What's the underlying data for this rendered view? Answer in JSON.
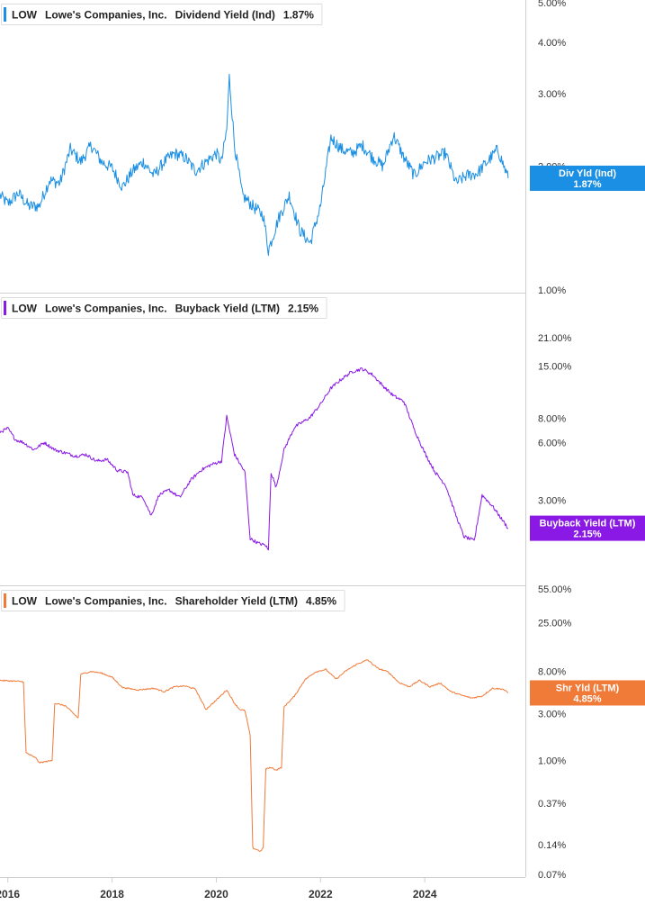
{
  "chart_data": [
    {
      "type": "line",
      "ticker": "LOW",
      "company": "Lowe's Companies, Inc.",
      "metric": "Dividend Yield (Ind)",
      "current_value": "1.87%",
      "tag_label": "Div Yld (Ind)",
      "tag_value": "1.87%",
      "color": "#1a8fe3",
      "y_scale": "log",
      "y_ticks": [
        5.0,
        4.0,
        3.0,
        2.0,
        1.0
      ],
      "y_tick_labels": [
        "5.00%",
        "4.00%",
        "3.00%",
        "2.00%",
        "1.00%"
      ],
      "ylim": [
        1.0,
        5.0
      ],
      "series": [
        {
          "x": [
            2015.85,
            2016.0,
            2016.2,
            2016.4,
            2016.6,
            2016.8,
            2017.0,
            2017.2,
            2017.4,
            2017.6,
            2017.8,
            2018.0,
            2018.2,
            2018.4,
            2018.6,
            2018.8,
            2019.0,
            2019.2,
            2019.4,
            2019.6,
            2019.8,
            2020.0,
            2020.1,
            2020.2,
            2020.25,
            2020.35,
            2020.5,
            2020.7,
            2020.9,
            2021.0,
            2021.2,
            2021.4,
            2021.6,
            2021.8,
            2022.0,
            2022.2,
            2022.4,
            2022.6,
            2022.8,
            2023.0,
            2023.2,
            2023.4,
            2023.6,
            2023.8,
            2024.0,
            2024.2,
            2024.4,
            2024.6,
            2024.8,
            2025.0,
            2025.2,
            2025.4,
            2025.6
          ],
          "values": [
            1.7,
            1.62,
            1.72,
            1.6,
            1.6,
            1.85,
            1.82,
            2.2,
            2.05,
            2.25,
            2.05,
            1.98,
            1.78,
            1.95,
            2.05,
            1.9,
            2.05,
            2.15,
            2.1,
            1.95,
            2.05,
            2.15,
            2.05,
            2.45,
            3.3,
            2.25,
            1.7,
            1.6,
            1.52,
            1.25,
            1.5,
            1.7,
            1.4,
            1.3,
            1.6,
            2.35,
            2.2,
            2.15,
            2.25,
            2.1,
            2.0,
            2.38,
            2.1,
            1.9,
            2.05,
            2.1,
            2.15,
            1.82,
            1.9,
            1.92,
            2.05,
            2.2,
            1.87
          ]
        }
      ]
    },
    {
      "type": "line",
      "ticker": "LOW",
      "company": "Lowe's Companies, Inc.",
      "metric": "Buyback Yield (LTM)",
      "current_value": "2.15%",
      "tag_label": "Buyback Yield (LTM)",
      "tag_value": "2.15%",
      "color": "#8a19e6",
      "y_scale": "log",
      "y_ticks": [
        21.0,
        15.0,
        8.0,
        6.0,
        3.0
      ],
      "y_tick_labels": [
        "21.00%",
        "15.00%",
        "8.00%",
        "6.00%",
        "3.00%"
      ],
      "ylim": [
        1.5,
        25.0
      ],
      "series": [
        {
          "x": [
            2015.85,
            2016.0,
            2016.15,
            2016.3,
            2016.5,
            2016.7,
            2016.9,
            2017.1,
            2017.3,
            2017.5,
            2017.7,
            2017.9,
            2018.1,
            2018.3,
            2018.4,
            2018.6,
            2018.75,
            2018.9,
            2019.1,
            2019.3,
            2019.5,
            2019.7,
            2019.9,
            2020.1,
            2020.2,
            2020.35,
            2020.55,
            2020.65,
            2020.8,
            2020.95,
            2021.0,
            2021.05,
            2021.15,
            2021.3,
            2021.5,
            2021.6,
            2021.8,
            2022.0,
            2022.2,
            2022.4,
            2022.6,
            2022.8,
            2023.0,
            2023.2,
            2023.4,
            2023.6,
            2023.8,
            2024.0,
            2024.2,
            2024.4,
            2024.6,
            2024.75,
            2024.95,
            2025.1,
            2025.3,
            2025.5,
            2025.6
          ],
          "values": [
            6.8,
            7.1,
            6.2,
            6.0,
            5.5,
            6.0,
            5.5,
            5.3,
            5.1,
            5.2,
            4.8,
            4.9,
            4.3,
            4.2,
            3.2,
            3.1,
            2.5,
            3.2,
            3.4,
            3.1,
            3.8,
            4.3,
            4.6,
            4.8,
            8.2,
            5.2,
            4.2,
            1.9,
            1.8,
            1.75,
            1.65,
            4.2,
            3.5,
            5.5,
            7.2,
            7.5,
            8.1,
            9.5,
            11.5,
            12.8,
            14.0,
            14.5,
            13.5,
            11.8,
            10.5,
            9.8,
            7.0,
            5.3,
            4.2,
            3.6,
            2.5,
            1.95,
            1.85,
            3.2,
            2.8,
            2.35,
            2.15
          ]
        }
      ]
    },
    {
      "type": "line",
      "ticker": "LOW",
      "company": "Lowe's Companies, Inc.",
      "metric": "Shareholder Yield (LTM)",
      "current_value": "4.85%",
      "tag_label": "Shr Yld (LTM)",
      "tag_value": "4.85%",
      "color": "#f07a38",
      "y_scale": "log",
      "y_ticks": [
        55.0,
        25.0,
        8.0,
        3.0,
        1.0,
        0.37,
        0.14,
        0.07
      ],
      "y_tick_labels": [
        "55.00%",
        "25.00%",
        "8.00%",
        "3.00%",
        "1.00%",
        "0.37%",
        "0.14%",
        "0.07%"
      ],
      "ylim": [
        0.07,
        55.0
      ],
      "series": [
        {
          "x": [
            2015.85,
            2016.1,
            2016.3,
            2016.35,
            2016.55,
            2016.6,
            2016.85,
            2016.9,
            2017.1,
            2017.35,
            2017.4,
            2017.6,
            2017.8,
            2018.0,
            2018.2,
            2018.5,
            2018.8,
            2019.0,
            2019.2,
            2019.4,
            2019.6,
            2019.8,
            2020.0,
            2020.2,
            2020.35,
            2020.45,
            2020.55,
            2020.65,
            2020.7,
            2020.85,
            2020.9,
            2020.95,
            2021.05,
            2021.15,
            2021.25,
            2021.3,
            2021.5,
            2021.7,
            2021.9,
            2022.1,
            2022.3,
            2022.5,
            2022.7,
            2022.9,
            2023.1,
            2023.3,
            2023.5,
            2023.7,
            2023.9,
            2024.1,
            2024.3,
            2024.5,
            2024.7,
            2024.9,
            2025.1,
            2025.3,
            2025.5,
            2025.6
          ],
          "values": [
            6.5,
            6.4,
            6.3,
            1.2,
            1.05,
            0.95,
            1.0,
            3.8,
            3.6,
            2.7,
            7.5,
            8.0,
            7.7,
            7.0,
            5.5,
            5.2,
            5.4,
            5.0,
            5.6,
            5.7,
            5.3,
            3.3,
            4.1,
            5.2,
            3.8,
            3.3,
            3.2,
            1.8,
            0.13,
            0.12,
            0.13,
            0.82,
            0.85,
            0.8,
            0.85,
            3.5,
            4.5,
            6.6,
            7.9,
            8.4,
            6.7,
            8.2,
            9.5,
            10.5,
            8.6,
            7.9,
            6.2,
            5.6,
            6.5,
            5.6,
            6.1,
            5.0,
            4.6,
            4.3,
            4.5,
            5.4,
            5.3,
            4.85
          ]
        }
      ]
    }
  ],
  "x_axis": {
    "tick_labels": [
      "2016",
      "2018",
      "2020",
      "2022",
      "2024"
    ],
    "tick_values": [
      2016,
      2018,
      2020,
      2022,
      2024
    ],
    "xlim": [
      2015.85,
      2025.93
    ]
  }
}
